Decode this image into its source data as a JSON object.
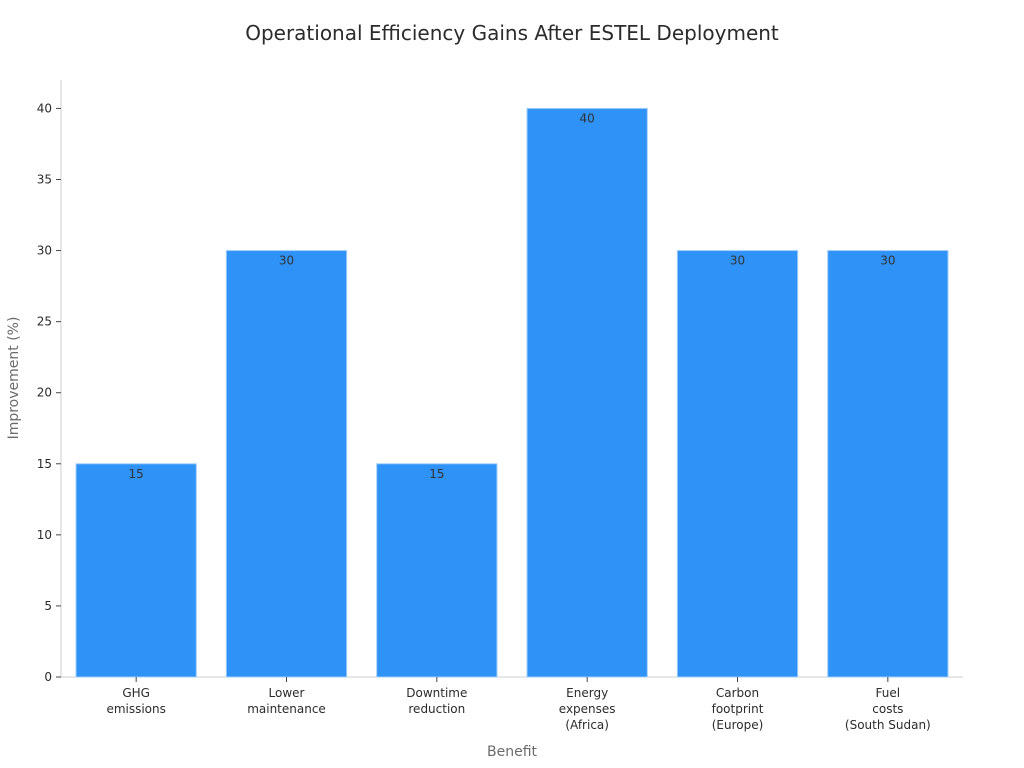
{
  "chart_data": {
    "type": "bar",
    "title": "Operational Efficiency Gains After ESTEL Deployment",
    "xlabel": "Benefit",
    "ylabel": "Improvement (%)",
    "categories": [
      [
        "GHG",
        "emissions"
      ],
      [
        "Lower",
        "maintenance"
      ],
      [
        "Downtime",
        "reduction"
      ],
      [
        "Energy",
        "expenses",
        "(Africa)"
      ],
      [
        "Carbon",
        "footprint",
        "(Europe)"
      ],
      [
        "Fuel",
        "costs",
        "(South Sudan)"
      ]
    ],
    "values": [
      15,
      30,
      15,
      40,
      30,
      30
    ],
    "ylim": [
      0,
      42
    ],
    "yticks": [
      0,
      5,
      10,
      15,
      20,
      25,
      30,
      35,
      40
    ],
    "grid": false,
    "bar_color": "#2f92f7",
    "bar_edge_color": "#9fcdfa"
  }
}
